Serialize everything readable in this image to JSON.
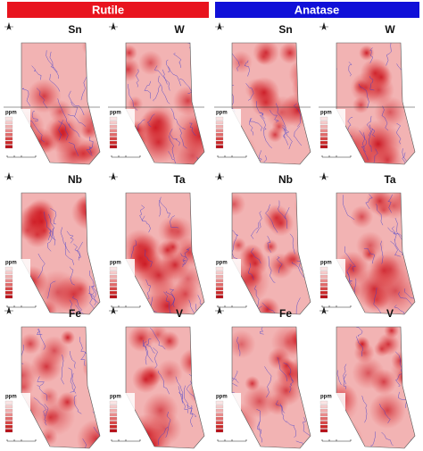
{
  "headers": [
    "Rutile",
    "Anatase"
  ],
  "panels": [
    {
      "label": "Sn",
      "unit": "ppm"
    },
    {
      "label": "W",
      "unit": "ppm"
    },
    {
      "label": "Sn",
      "unit": "ppm"
    },
    {
      "label": "W",
      "unit": "ppm"
    },
    {
      "label": "Nb",
      "unit": "ppm"
    },
    {
      "label": "Ta",
      "unit": "ppm"
    },
    {
      "label": "Nb",
      "unit": "ppm"
    },
    {
      "label": "Ta",
      "unit": "ppm"
    },
    {
      "label": "Fe",
      "unit": "ppm"
    },
    {
      "label": "V",
      "unit": "ppm"
    },
    {
      "label": "Fe",
      "unit": "ppm"
    },
    {
      "label": "V",
      "unit": "ppm"
    }
  ]
}
